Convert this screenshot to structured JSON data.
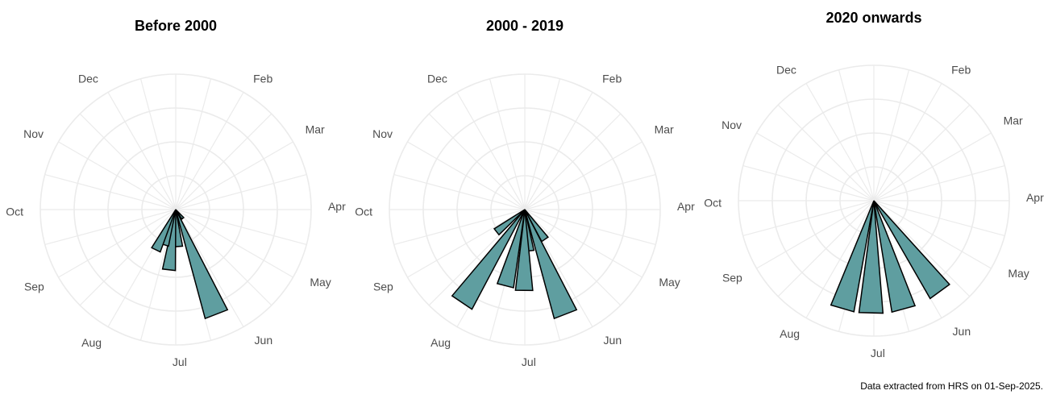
{
  "caption": "Data extracted from HRS on 01-Sep-2025.",
  "chart_data": [
    {
      "type": "bar",
      "projection": "polar",
      "title": "Before 2000",
      "categories": [
        "Jan",
        "Feb",
        "Mar",
        "Apr",
        "May",
        "Jun",
        "Jul",
        "Aug",
        "Sep",
        "Oct",
        "Nov",
        "Dec"
      ],
      "bars": [
        {
          "day": 143,
          "value": 0.1
        },
        {
          "day": 161,
          "value": 1.0
        },
        {
          "day": 178,
          "value": 0.33
        },
        {
          "day": 189,
          "value": 0.54
        },
        {
          "day": 200,
          "value": 0.33
        },
        {
          "day": 209,
          "value": 0.4
        }
      ],
      "ylim": [
        0,
        1.2
      ],
      "bar_color": "#5f9ea0",
      "grid": true
    },
    {
      "type": "bar",
      "projection": "polar",
      "title": "2000 - 2019",
      "categories": [
        "Jan",
        "Feb",
        "Mar",
        "Apr",
        "May",
        "Jun",
        "Jul",
        "Aug",
        "Sep",
        "Oct",
        "Nov",
        "Dec"
      ],
      "bars": [
        {
          "day": 148,
          "value": 0.32
        },
        {
          "day": 161,
          "value": 1.0
        },
        {
          "day": 176,
          "value": 0.37
        },
        {
          "day": 183,
          "value": 0.72
        },
        {
          "day": 197,
          "value": 0.7
        },
        {
          "day": 217,
          "value": 1.0
        },
        {
          "day": 235,
          "value": 0.32
        }
      ],
      "ylim": [
        0,
        1.2
      ],
      "bar_color": "#5f9ea0",
      "grid": true
    },
    {
      "type": "bar",
      "projection": "polar",
      "title": "2020 onwards",
      "categories": [
        "Jan",
        "Feb",
        "Mar",
        "Apr",
        "May",
        "Jun",
        "Jul",
        "Aug",
        "Sep",
        "Oct",
        "Nov",
        "Dec"
      ],
      "bars": [
        {
          "day": 146,
          "value": 1.0
        },
        {
          "day": 167,
          "value": 1.0
        },
        {
          "day": 184,
          "value": 1.0
        },
        {
          "day": 199,
          "value": 1.0
        }
      ],
      "ylim": [
        0,
        1.2
      ],
      "bar_color": "#5f9ea0",
      "grid": true
    }
  ]
}
